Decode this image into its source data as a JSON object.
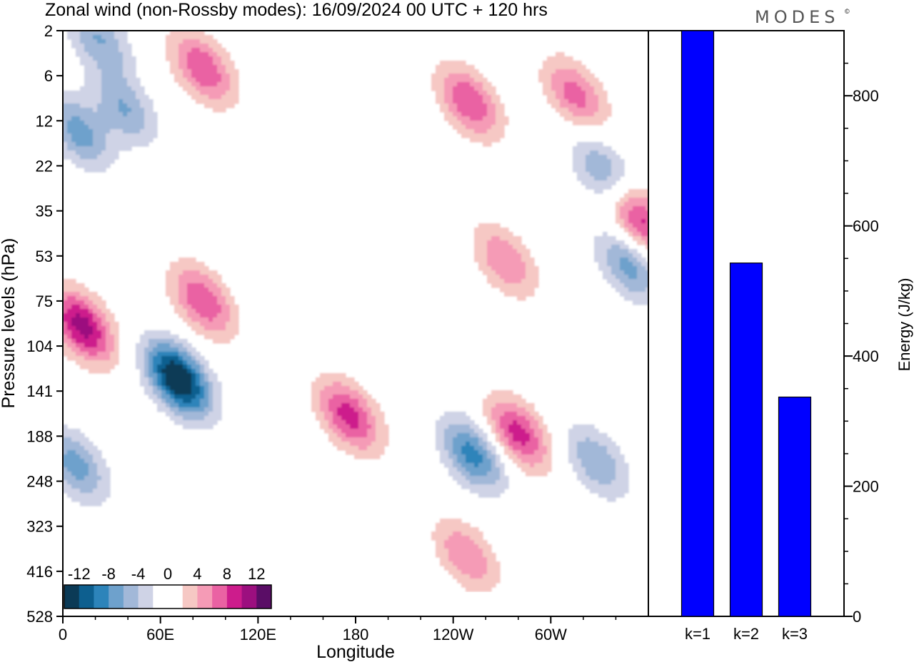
{
  "title": "Zonal wind (non-Rossby modes):  16/09/2024  00 UTC  + 120 hrs",
  "brand": "MODES",
  "brand_mark": "©",
  "colors": {
    "bar_fill": "#0000ff",
    "negative": [
      "#0b3a56",
      "#0d5f8f",
      "#2d84ba",
      "#6ea1cc",
      "#a2b8d8",
      "#cfd3e6"
    ],
    "positive": [
      "#f6c8c4",
      "#f59bb6",
      "#ea62a3",
      "#cd1c8c",
      "#9c0f7f",
      "#5a0d66"
    ],
    "neutral": "#ffffff"
  },
  "chart_data": [
    {
      "type": "heatmap",
      "title": "Zonal wind (non-Rossby modes):  16/09/2024  00 UTC  + 120 hrs",
      "xlabel": "Longitude",
      "ylabel": "Pressure levels (hPa)",
      "x_ticks": [
        "0",
        "60E",
        "120E",
        "180",
        "120W",
        "60W"
      ],
      "x_tick_degrees": [
        0,
        60,
        120,
        180,
        240,
        300
      ],
      "xlim": [
        0,
        360
      ],
      "y_ticks": [
        "2",
        "6",
        "12",
        "22",
        "35",
        "53",
        "75",
        "104",
        "141",
        "188",
        "248",
        "323",
        "416",
        "528"
      ],
      "colorbar_labels": [
        "-12",
        "-8",
        "-4",
        "0",
        "4",
        "8",
        "12"
      ],
      "colorbar_levels": [
        -14,
        -12,
        -10,
        -8,
        -6,
        -4,
        -2,
        2,
        4,
        6,
        8,
        10,
        12,
        14
      ],
      "features": [
        {
          "lon": 71,
          "level": 130,
          "value": -15
        },
        {
          "lon": 86,
          "level": 75,
          "value": 8
        },
        {
          "lon": 12,
          "level": 90,
          "value": 11
        },
        {
          "lon": 176,
          "level": 165,
          "value": 9
        },
        {
          "lon": 250,
          "level": 9,
          "value": 8
        },
        {
          "lon": 280,
          "level": 185,
          "value": 9
        },
        {
          "lon": 272,
          "level": 55,
          "value": 6
        },
        {
          "lon": 355,
          "level": 38,
          "value": 9
        },
        {
          "lon": 315,
          "level": 8,
          "value": 7
        },
        {
          "lon": 248,
          "level": 380,
          "value": 6
        },
        {
          "lon": 252,
          "level": 210,
          "value": -9
        },
        {
          "lon": 348,
          "level": 57,
          "value": -7
        },
        {
          "lon": 10,
          "level": 14,
          "value": -7
        },
        {
          "lon": 38,
          "level": 10,
          "value": -6
        },
        {
          "lon": 22,
          "level": 2.4,
          "value": -6
        },
        {
          "lon": 8,
          "level": 225,
          "value": -7
        },
        {
          "lon": 328,
          "level": 220,
          "value": -6
        },
        {
          "lon": 86,
          "level": 5,
          "value": 8
        },
        {
          "lon": 332,
          "level": 23,
          "value": -6
        }
      ]
    },
    {
      "type": "bar",
      "categories": [
        "k=1",
        "k=2",
        "k=3"
      ],
      "values": [
        900,
        543,
        337
      ],
      "ylabel": "Energy (J/kg)",
      "y_ticks": [
        0,
        200,
        400,
        600,
        800
      ],
      "ylim": [
        0,
        900
      ]
    }
  ]
}
